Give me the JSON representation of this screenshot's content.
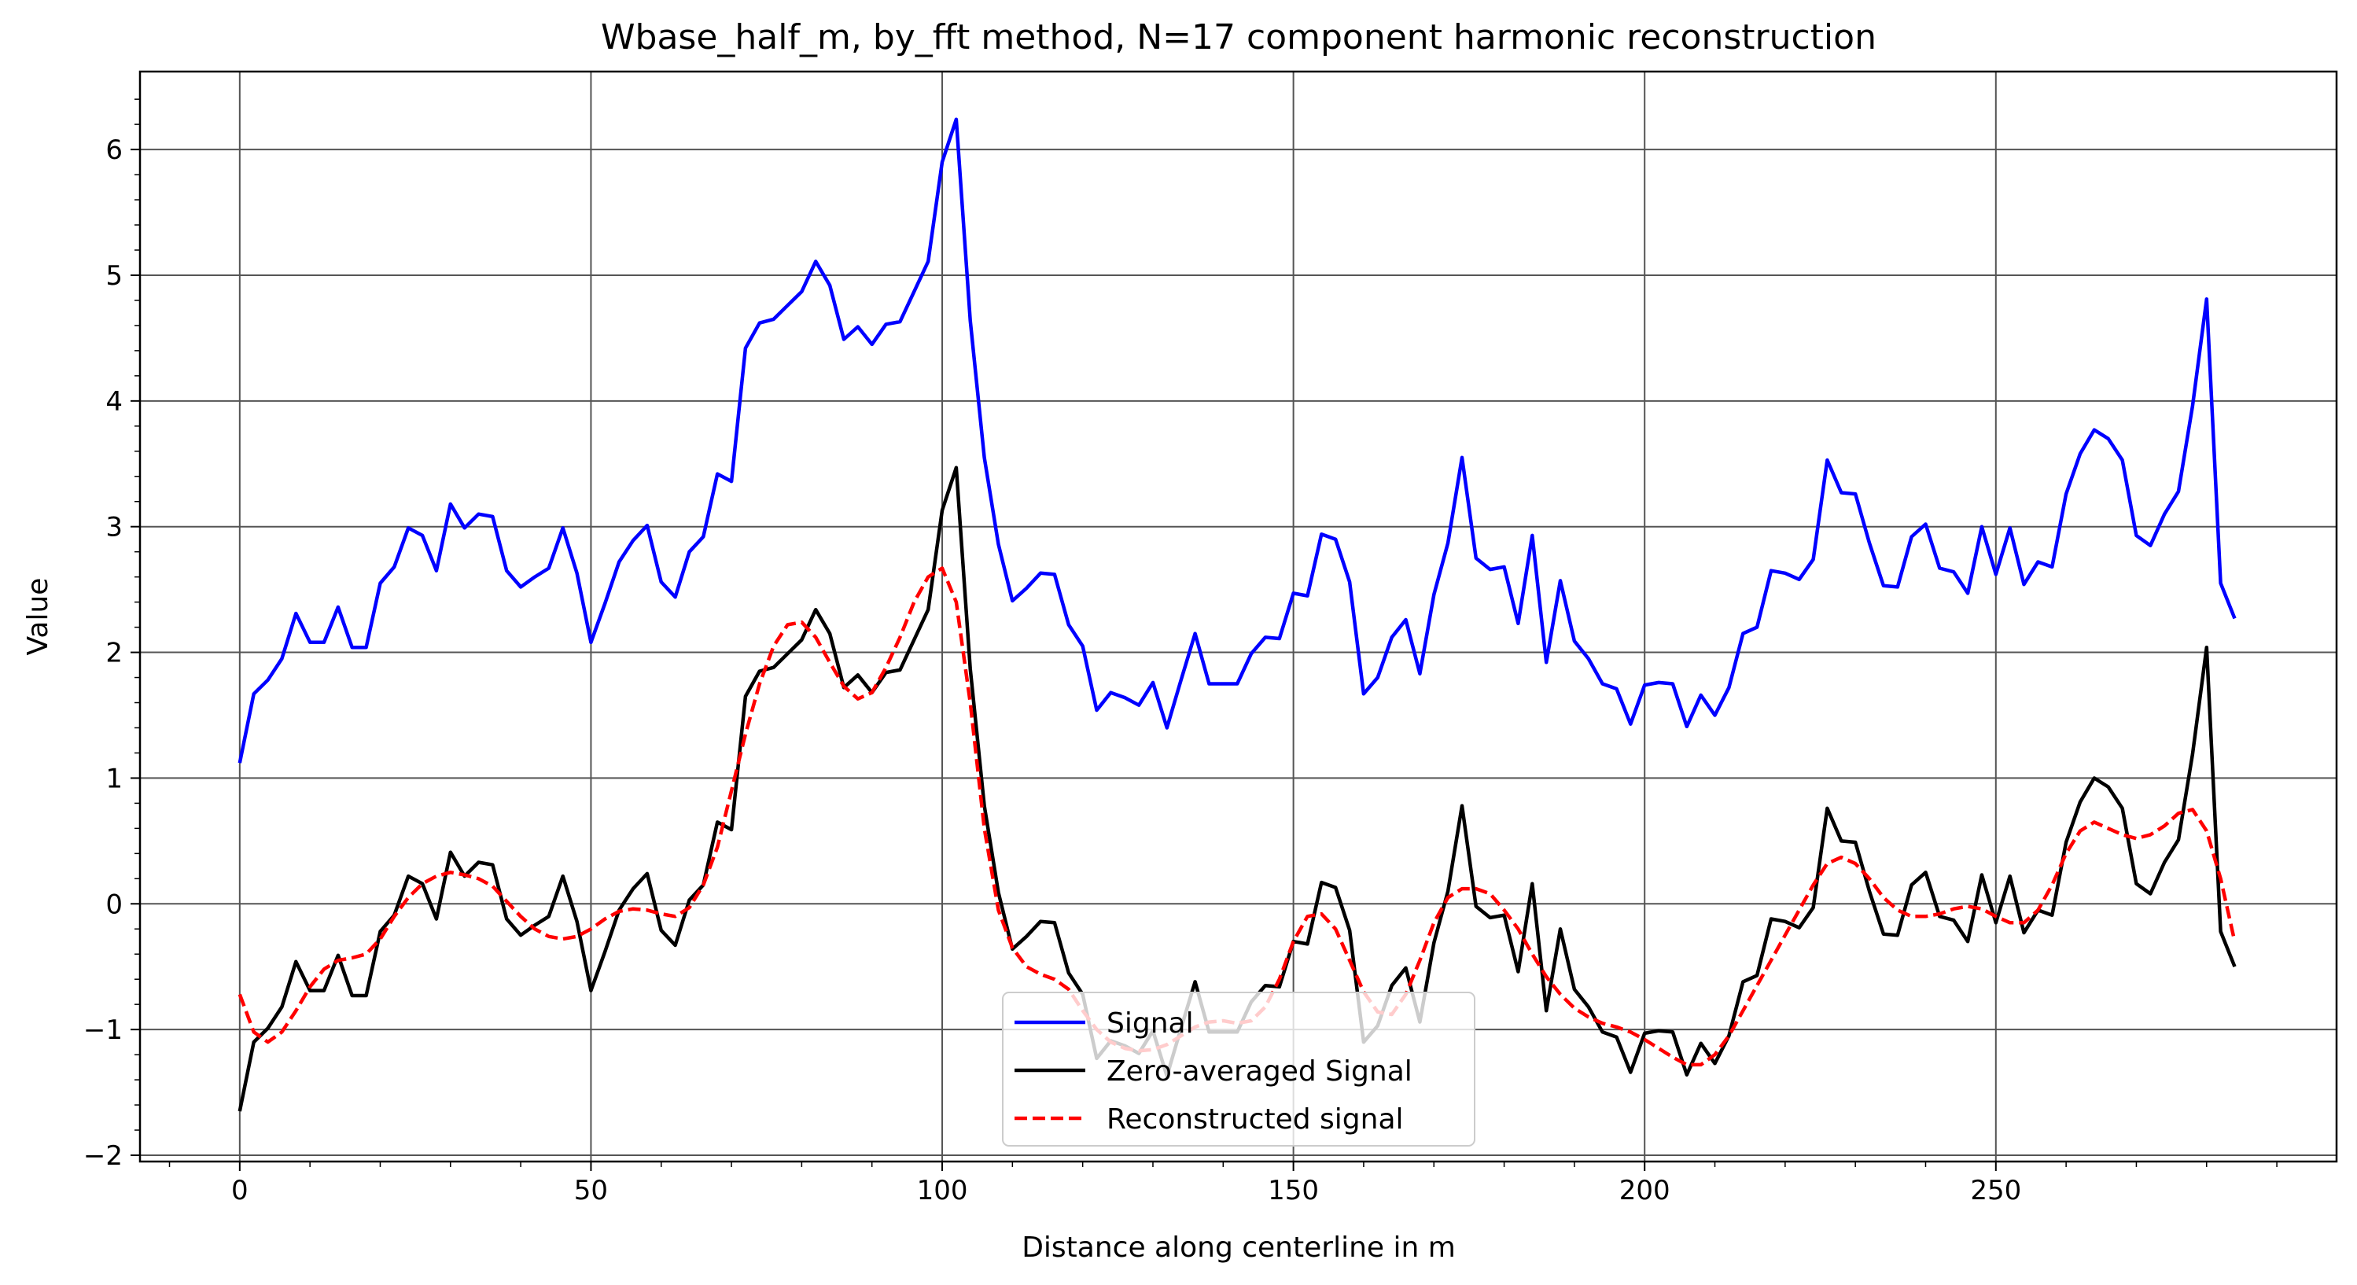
{
  "chart_data": {
    "type": "line",
    "title": "Wbase_half_m, by_fft method, N=17 component harmonic reconstruction",
    "xlabel": "Distance along centerline in m",
    "ylabel": "Value",
    "xlim": [
      -14.2,
      298.5
    ],
    "ylim": [
      -2.05,
      6.62
    ],
    "xticks": [
      0,
      50,
      100,
      150,
      200,
      250
    ],
    "yticks": [
      -2,
      -1,
      0,
      1,
      2,
      3,
      4,
      5,
      6
    ],
    "ytick_labels": [
      "−2",
      "−1",
      "0",
      "1",
      "2",
      "3",
      "4",
      "5",
      "6"
    ],
    "grid": true,
    "legend_position": "lower center",
    "x": [
      0,
      2,
      4,
      6,
      8,
      10,
      12,
      14,
      16,
      18,
      20,
      22,
      24,
      26,
      28,
      30,
      32,
      34,
      36,
      38,
      40,
      42,
      44,
      46,
      48,
      50,
      52,
      54,
      56,
      58,
      60,
      62,
      64,
      66,
      68,
      70,
      72,
      74,
      76,
      78,
      80,
      82,
      84,
      86,
      88,
      90,
      92,
      94,
      96,
      98,
      100,
      102,
      104,
      106,
      108,
      110,
      112,
      114,
      116,
      118,
      120,
      122,
      124,
      126,
      128,
      130,
      132,
      134,
      136,
      138,
      140,
      142,
      144,
      146,
      148,
      150,
      152,
      154,
      156,
      158,
      160,
      162,
      164,
      166,
      168,
      170,
      172,
      174,
      176,
      178,
      180,
      182,
      184,
      186,
      188,
      190,
      192,
      194,
      196,
      198,
      200,
      202,
      204,
      206,
      208,
      210,
      212,
      214,
      216,
      218,
      220,
      222,
      224,
      226,
      228,
      230,
      232,
      234,
      236,
      238,
      240,
      242,
      244,
      246,
      248,
      250,
      252,
      254,
      256,
      258,
      260,
      262,
      264,
      266,
      268,
      270,
      272,
      274,
      276,
      278,
      280,
      282,
      284
    ],
    "series": [
      {
        "name": "Signal",
        "color": "#0000ff",
        "style": "solid",
        "values": [
          1.12,
          1.67,
          1.78,
          1.95,
          2.31,
          2.08,
          2.08,
          2.36,
          2.04,
          2.04,
          2.55,
          2.68,
          2.99,
          2.93,
          2.65,
          3.18,
          2.99,
          3.1,
          3.08,
          2.65,
          2.52,
          2.6,
          2.67,
          2.99,
          2.63,
          2.08,
          2.39,
          2.72,
          2.89,
          3.01,
          2.56,
          2.44,
          2.8,
          2.92,
          3.42,
          3.36,
          4.42,
          4.62,
          4.65,
          4.76,
          4.87,
          5.11,
          4.92,
          4.49,
          4.59,
          4.45,
          4.61,
          4.63,
          4.87,
          5.11,
          5.9,
          6.24,
          4.64,
          3.55,
          2.86,
          2.41,
          2.51,
          2.63,
          2.62,
          2.22,
          2.05,
          1.54,
          1.68,
          1.64,
          1.58,
          1.76,
          1.4,
          1.78,
          2.15,
          1.75,
          1.75,
          1.75,
          1.99,
          2.12,
          2.11,
          2.47,
          2.45,
          2.94,
          2.9,
          2.56,
          1.67,
          1.8,
          2.12,
          2.26,
          1.83,
          2.46,
          2.87,
          3.55,
          2.75,
          2.66,
          2.68,
          2.23,
          2.93,
          1.92,
          2.57,
          2.09,
          1.95,
          1.75,
          1.71,
          1.43,
          1.74,
          1.76,
          1.75,
          1.41,
          1.66,
          1.5,
          1.72,
          2.15,
          2.2,
          2.65,
          2.63,
          2.58,
          2.74,
          3.53,
          3.27,
          3.26,
          2.87,
          2.53,
          2.52,
          2.92,
          3.02,
          2.67,
          2.64,
          2.47,
          3.0,
          2.62,
          2.99,
          2.54,
          2.72,
          2.68,
          3.26,
          3.58,
          3.77,
          3.7,
          3.53,
          2.93,
          2.85,
          3.1,
          3.28,
          3.96,
          4.81,
          2.55,
          2.27
        ]
      },
      {
        "name": "Zero-averaged Signal",
        "color": "#000000",
        "style": "solid",
        "values": [
          -1.65,
          -1.1,
          -0.99,
          -0.82,
          -0.46,
          -0.69,
          -0.69,
          -0.41,
          -0.73,
          -0.73,
          -0.22,
          -0.09,
          0.22,
          0.16,
          -0.12,
          0.41,
          0.22,
          0.33,
          0.31,
          -0.12,
          -0.25,
          -0.17,
          -0.1,
          0.22,
          -0.14,
          -0.69,
          -0.38,
          -0.05,
          0.12,
          0.24,
          -0.21,
          -0.33,
          0.03,
          0.15,
          0.65,
          0.59,
          1.65,
          1.85,
          1.88,
          1.99,
          2.1,
          2.34,
          2.15,
          1.72,
          1.82,
          1.68,
          1.84,
          1.86,
          2.1,
          2.34,
          3.13,
          3.47,
          1.87,
          0.78,
          0.09,
          -0.36,
          -0.26,
          -0.14,
          -0.15,
          -0.55,
          -0.72,
          -1.23,
          -1.09,
          -1.13,
          -1.19,
          -1.01,
          -1.37,
          -0.99,
          -0.62,
          -1.02,
          -1.02,
          -1.02,
          -0.78,
          -0.65,
          -0.66,
          -0.3,
          -0.32,
          0.17,
          0.13,
          -0.21,
          -1.1,
          -0.97,
          -0.65,
          -0.51,
          -0.94,
          -0.31,
          0.1,
          0.78,
          -0.02,
          -0.11,
          -0.09,
          -0.54,
          0.16,
          -0.85,
          -0.2,
          -0.68,
          -0.82,
          -1.02,
          -1.06,
          -1.34,
          -1.03,
          -1.01,
          -1.02,
          -1.36,
          -1.11,
          -1.27,
          -1.05,
          -0.62,
          -0.57,
          -0.12,
          -0.14,
          -0.19,
          -0.03,
          0.76,
          0.5,
          0.49,
          0.1,
          -0.24,
          -0.25,
          0.15,
          0.25,
          -0.1,
          -0.13,
          -0.3,
          0.23,
          -0.15,
          0.22,
          -0.23,
          -0.05,
          -0.09,
          0.49,
          0.81,
          1.0,
          0.93,
          0.76,
          0.16,
          0.08,
          0.33,
          0.51,
          1.19,
          2.04,
          -0.22,
          -0.5
        ]
      },
      {
        "name": "Reconstructed signal",
        "color": "#ff0000",
        "style": "dashed",
        "values": [
          -0.72,
          -1.02,
          -1.1,
          -1.02,
          -0.85,
          -0.66,
          -0.52,
          -0.45,
          -0.43,
          -0.4,
          -0.28,
          -0.1,
          0.05,
          0.16,
          0.22,
          0.25,
          0.23,
          0.2,
          0.14,
          0.02,
          -0.1,
          -0.2,
          -0.26,
          -0.28,
          -0.26,
          -0.2,
          -0.12,
          -0.06,
          -0.04,
          -0.05,
          -0.08,
          -0.1,
          -0.03,
          0.15,
          0.45,
          0.9,
          1.35,
          1.75,
          2.05,
          2.22,
          2.24,
          2.12,
          1.92,
          1.73,
          1.63,
          1.68,
          1.88,
          2.12,
          2.4,
          2.6,
          2.67,
          2.4,
          1.6,
          0.6,
          -0.05,
          -0.35,
          -0.5,
          -0.56,
          -0.6,
          -0.68,
          -0.85,
          -1.0,
          -1.1,
          -1.15,
          -1.17,
          -1.16,
          -1.12,
          -1.05,
          -0.98,
          -0.94,
          -0.93,
          -0.95,
          -0.93,
          -0.82,
          -0.6,
          -0.3,
          -0.1,
          -0.08,
          -0.2,
          -0.45,
          -0.7,
          -0.86,
          -0.88,
          -0.72,
          -0.45,
          -0.15,
          0.05,
          0.12,
          0.12,
          0.08,
          -0.05,
          -0.2,
          -0.4,
          -0.58,
          -0.72,
          -0.83,
          -0.9,
          -0.95,
          -0.98,
          -1.02,
          -1.08,
          -1.15,
          -1.22,
          -1.28,
          -1.28,
          -1.2,
          -1.05,
          -0.85,
          -0.65,
          -0.45,
          -0.25,
          -0.05,
          0.15,
          0.32,
          0.37,
          0.32,
          0.2,
          0.05,
          -0.05,
          -0.1,
          -0.1,
          -0.08,
          -0.04,
          -0.02,
          -0.04,
          -0.1,
          -0.15,
          -0.15,
          -0.05,
          0.15,
          0.4,
          0.58,
          0.65,
          0.6,
          0.55,
          0.52,
          0.55,
          0.62,
          0.72,
          0.75,
          0.58,
          0.2,
          -0.3
        ]
      }
    ]
  }
}
